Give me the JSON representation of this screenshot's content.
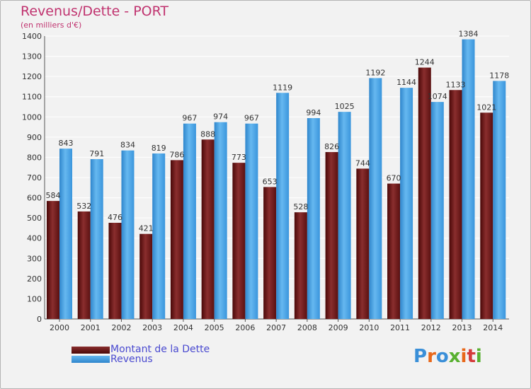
{
  "chart_data": {
    "type": "bar",
    "title": "Revenus/Dette - PORT",
    "subtitle": "(en milliers d'€)",
    "categories": [
      "2000",
      "2001",
      "2002",
      "2003",
      "2004",
      "2005",
      "2006",
      "2007",
      "2008",
      "2009",
      "2010",
      "2011",
      "2012",
      "2013",
      "2014"
    ],
    "series": [
      {
        "name": "Montant de la Dette",
        "values": [
          584,
          532,
          476,
          421,
          786,
          888,
          773,
          653,
          528,
          826,
          744,
          670,
          1244,
          1133,
          1021
        ],
        "labels": [
          "584",
          "532",
          "476",
          "421",
          "786",
          "888",
          "773",
          "653",
          "528",
          "826",
          "744",
          "670",
          "1244",
          "1133",
          "1021"
        ],
        "color": "#6e1e1e"
      },
      {
        "name": "Revenus",
        "values": [
          843,
          791,
          834,
          819,
          967,
          974,
          967,
          1119,
          994,
          1025,
          1192,
          1144,
          1074,
          1384,
          1178
        ],
        "labels": [
          "843",
          "791",
          "834",
          "819",
          "967",
          "974",
          "967",
          "1119",
          "994",
          "1025",
          "1192",
          "1144",
          "1074",
          "1384",
          "1178"
        ],
        "color": "#3d9be0"
      }
    ],
    "ylim": [
      0,
      1400
    ],
    "yticks": [
      0,
      100,
      200,
      300,
      400,
      500,
      600,
      700,
      800,
      900,
      1000,
      1100,
      1200,
      1300,
      1400
    ],
    "grid": true,
    "legend": "bottom-left"
  },
  "logo": {
    "text": "Proxiti",
    "colors": [
      "#3a8fd8",
      "#e8681a",
      "#3a8fd8",
      "#58b030",
      "#e8681a",
      "#d43a3a",
      "#58b030"
    ]
  }
}
